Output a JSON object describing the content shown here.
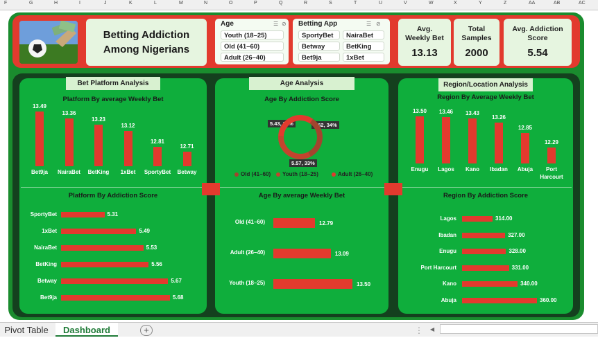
{
  "columns": [
    "F",
    "G",
    "H",
    "I",
    "J",
    "K",
    "L",
    "M",
    "N",
    "O",
    "P",
    "Q",
    "R",
    "S",
    "T",
    "U",
    "V",
    "W",
    "X",
    "Y",
    "Z",
    "AA",
    "AB",
    "AC"
  ],
  "dashboard": {
    "title": "Betting Addiction\nAmong Nigerians"
  },
  "slicers": {
    "age": {
      "title": "Age",
      "items": [
        "Youth (18–25)",
        "Old (41–60)",
        "Adult (26–40)"
      ]
    },
    "app": {
      "title": "Betting App",
      "items": [
        "SportyBet",
        "NairaBet",
        "Betway",
        "BetKing",
        "Bet9ja",
        "1xBet"
      ]
    }
  },
  "kpis": [
    {
      "label": "Avg.\nWeekly Bet",
      "value": "13.13"
    },
    {
      "label": "Total\nSamples",
      "value": "2000"
    },
    {
      "label": "Avg. Addiction\nScore",
      "value": "5.54"
    }
  ],
  "panels": {
    "platform": "Bet Platform Analysis",
    "age": "Age Analysis",
    "region": "Region/Location Analysis"
  },
  "chart_data": [
    {
      "type": "bar",
      "title": "Platform By average Weekly Bet",
      "categories": [
        "Bet9ja",
        "NairaBet",
        "BetKing",
        "1xBet",
        "SportyBet",
        "Betway"
      ],
      "values": [
        13.49,
        13.36,
        13.23,
        13.12,
        12.81,
        12.71
      ],
      "labels": [
        "13.49",
        "13.36",
        "13.23",
        "13.12",
        "12.81",
        "12.71"
      ]
    },
    {
      "type": "bar",
      "orientation": "horizontal",
      "title": "Platform By Addiction Score",
      "categories": [
        "SportyBet",
        "1xBet",
        "NairaBet",
        "BetKing",
        "Betway",
        "Bet9ja"
      ],
      "values": [
        5.31,
        5.49,
        5.53,
        5.56,
        5.67,
        5.68
      ],
      "labels": [
        "5.31",
        "5.49",
        "5.53",
        "5.56",
        "5.67",
        "5.68"
      ]
    },
    {
      "type": "pie",
      "style": "donut",
      "title": "Age By Addiction Score",
      "categories": [
        "Old (41–60)",
        "Youth (18–25)",
        "Adult (26–40)"
      ],
      "values": [
        5.43,
        5.62,
        5.57
      ],
      "percent": [
        33,
        34,
        33
      ],
      "labels": [
        "5.43, 33%",
        "5.62, 34%",
        "5.57, 33%"
      ],
      "colors": [
        "#a3442e",
        "#c4442e",
        "#e23a2e"
      ]
    },
    {
      "type": "bar",
      "orientation": "horizontal",
      "title": "Age By average Weekly Bet",
      "categories": [
        "Old (41–60)",
        "Adult (26–40)",
        "Youth (18–25)"
      ],
      "values": [
        12.79,
        13.09,
        13.5
      ],
      "labels": [
        "12.79",
        "13.09",
        "13.50"
      ]
    },
    {
      "type": "bar",
      "title": "Region By Average Weekly Bet",
      "categories": [
        "Enugu",
        "Lagos",
        "Kano",
        "Ibadan",
        "Abuja",
        "Port\nHarcourt"
      ],
      "values": [
        13.5,
        13.46,
        13.43,
        13.26,
        12.85,
        12.29
      ],
      "labels": [
        "13.50",
        "13.46",
        "13.43",
        "13.26",
        "12.85",
        "12.29"
      ]
    },
    {
      "type": "bar",
      "orientation": "horizontal",
      "title": "Region By Addiction Score",
      "categories": [
        "Lagos",
        "Ibadan",
        "Enugu",
        "Port Harcourt",
        "Kano",
        "Abuja"
      ],
      "values": [
        314,
        327,
        328,
        331,
        340,
        360
      ],
      "labels": [
        "314.00",
        "327.00",
        "328.00",
        "331.00",
        "340.00",
        "360.00"
      ]
    }
  ],
  "sheet_tabs": {
    "pivot": "Pivot Table",
    "dashboard": "Dashboard",
    "add": "+"
  },
  "colors": {
    "accent": "#e23a2e",
    "panel": "#0fae3c",
    "frame": "#1a8c2e",
    "dark": "#14401e"
  }
}
